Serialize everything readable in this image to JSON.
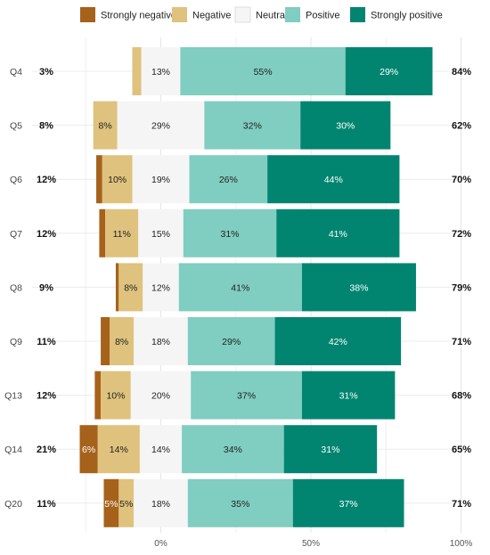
{
  "chart_data": {
    "type": "bar",
    "orientation": "horizontal",
    "stacked": "diverging",
    "legend_position": "top",
    "grid": true,
    "categories": [
      "Strongly negative",
      "Negative",
      "Neutral",
      "Positive",
      "Strongly positive"
    ],
    "colors": {
      "Strongly negative": "#a6611a",
      "Negative": "#dfc27d",
      "Neutral": "#f5f5f5",
      "Positive": "#80cdc1",
      "Strongly positive": "#018571"
    },
    "segment_text_colors": {
      "Strongly negative": "#ffffff",
      "Negative": "#222222",
      "Neutral": "#222222",
      "Positive": "#222222",
      "Strongly positive": "#ffffff"
    },
    "x_ticks": [
      "0%",
      "50%",
      "100%"
    ],
    "questions": [
      {
        "question": "Q4",
        "left_total": "3%",
        "right_total": "84%",
        "values": [
          0,
          3,
          13,
          55,
          29
        ],
        "labels": [
          "",
          "",
          "13%",
          "55%",
          "29%"
        ]
      },
      {
        "question": "Q5",
        "left_total": "8%",
        "right_total": "62%",
        "values": [
          0,
          8,
          29,
          32,
          30
        ],
        "labels": [
          "",
          "8%",
          "29%",
          "32%",
          "30%"
        ]
      },
      {
        "question": "Q6",
        "left_total": "12%",
        "right_total": "70%",
        "values": [
          2,
          10,
          19,
          26,
          44
        ],
        "labels": [
          "",
          "10%",
          "19%",
          "26%",
          "44%"
        ]
      },
      {
        "question": "Q7",
        "left_total": "12%",
        "right_total": "72%",
        "values": [
          2,
          11,
          15,
          31,
          41
        ],
        "labels": [
          "",
          "11%",
          "15%",
          "31%",
          "41%"
        ]
      },
      {
        "question": "Q8",
        "left_total": "9%",
        "right_total": "79%",
        "values": [
          1,
          8,
          12,
          41,
          38
        ],
        "labels": [
          "",
          "8%",
          "12%",
          "41%",
          "38%"
        ]
      },
      {
        "question": "Q9",
        "left_total": "11%",
        "right_total": "71%",
        "values": [
          3,
          8,
          18,
          29,
          42
        ],
        "labels": [
          "",
          "8%",
          "18%",
          "29%",
          "42%"
        ]
      },
      {
        "question": "Q13",
        "left_total": "12%",
        "right_total": "68%",
        "values": [
          2,
          10,
          20,
          37,
          31
        ],
        "labels": [
          "",
          "10%",
          "20%",
          "37%",
          "31%"
        ]
      },
      {
        "question": "Q14",
        "left_total": "21%",
        "right_total": "65%",
        "values": [
          6,
          14,
          14,
          34,
          31
        ],
        "labels": [
          "6%",
          "14%",
          "14%",
          "34%",
          "31%"
        ]
      },
      {
        "question": "Q20",
        "left_total": "11%",
        "right_total": "71%",
        "values": [
          5,
          5,
          18,
          35,
          37
        ],
        "labels": [
          "5%",
          "5%",
          "18%",
          "35%",
          "37%"
        ]
      }
    ]
  }
}
